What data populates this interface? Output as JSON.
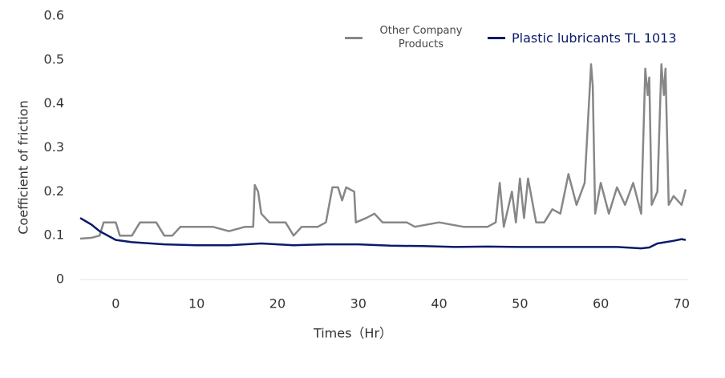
{
  "chart_data": {
    "type": "line",
    "xlabel": "Times（Hr）",
    "ylabel": "Coefficient of friction",
    "xlim": [
      -4.4,
      70.8
    ],
    "ylim": [
      0,
      0.6
    ],
    "xticks": [
      0,
      10,
      20,
      30,
      40,
      50,
      60,
      70
    ],
    "yticks": [
      0,
      0.1,
      0.2,
      0.3,
      0.4,
      0.5,
      0.6
    ],
    "grid": false,
    "legend": "top-right",
    "series": [
      {
        "name": "Other Company Products",
        "color": "#878787",
        "x": [
          -4.4,
          -3,
          -2,
          -1.5,
          0,
          0.5,
          2,
          3,
          5,
          6,
          7,
          8,
          10,
          12,
          14,
          16,
          17,
          17.2,
          17.6,
          18,
          19,
          21,
          22,
          23,
          25,
          26,
          26.8,
          27.5,
          28,
          28.5,
          29.5,
          29.7,
          31,
          32,
          33,
          35,
          36,
          37,
          40,
          43,
          46,
          47,
          47.5,
          48,
          49,
          49.5,
          50,
          50.5,
          51,
          52,
          53,
          54,
          55,
          56,
          57,
          58,
          58.8,
          59,
          59.3,
          60,
          61,
          62,
          63,
          64,
          65,
          65.5,
          65.8,
          66,
          66.3,
          67,
          67.5,
          67.8,
          68,
          68.4,
          69,
          70,
          70.5
        ],
        "values": [
          0.093,
          0.095,
          0.1,
          0.13,
          0.13,
          0.1,
          0.1,
          0.13,
          0.13,
          0.1,
          0.1,
          0.12,
          0.12,
          0.12,
          0.11,
          0.12,
          0.12,
          0.215,
          0.2,
          0.15,
          0.13,
          0.13,
          0.1,
          0.12,
          0.12,
          0.13,
          0.21,
          0.21,
          0.18,
          0.21,
          0.2,
          0.13,
          0.14,
          0.15,
          0.13,
          0.13,
          0.13,
          0.12,
          0.13,
          0.12,
          0.12,
          0.13,
          0.22,
          0.12,
          0.2,
          0.13,
          0.23,
          0.14,
          0.23,
          0.13,
          0.13,
          0.16,
          0.15,
          0.24,
          0.17,
          0.22,
          0.49,
          0.44,
          0.15,
          0.22,
          0.15,
          0.21,
          0.17,
          0.22,
          0.15,
          0.48,
          0.42,
          0.46,
          0.17,
          0.2,
          0.49,
          0.42,
          0.48,
          0.17,
          0.19,
          0.17,
          0.205
        ]
      },
      {
        "name": "Plastic lubricants TL 1013",
        "color": "#0b1a6b",
        "x": [
          -4.4,
          -3,
          -2,
          0,
          2,
          6,
          10,
          14,
          16,
          18,
          22,
          26,
          30,
          34,
          38,
          42,
          46,
          50,
          54,
          58,
          62,
          65,
          66,
          67,
          69,
          70,
          70.5
        ],
        "values": [
          0.14,
          0.125,
          0.11,
          0.09,
          0.085,
          0.08,
          0.078,
          0.078,
          0.08,
          0.082,
          0.078,
          0.08,
          0.08,
          0.077,
          0.076,
          0.074,
          0.075,
          0.074,
          0.074,
          0.074,
          0.074,
          0.071,
          0.073,
          0.082,
          0.088,
          0.092,
          0.09
        ]
      }
    ]
  }
}
